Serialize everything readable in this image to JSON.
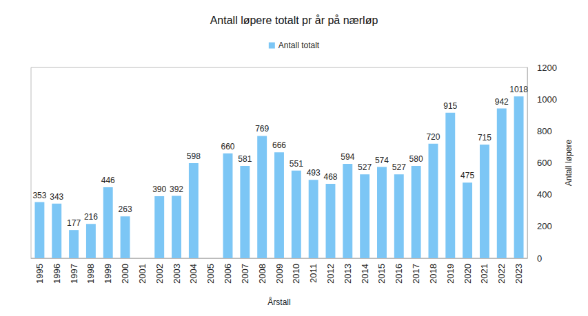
{
  "chart_data": {
    "type": "bar",
    "title": "Antall løpere totalt pr år på nærløp",
    "x_label": "Årstall",
    "y_label": "Antall løpere",
    "categories": [
      "1995",
      "1996",
      "1997",
      "1998",
      "1999",
      "2000",
      "2001",
      "2002",
      "2003",
      "2004",
      "2005",
      "2006",
      "2007",
      "2008",
      "2009",
      "2010",
      "2011",
      "2012",
      "2013",
      "2014",
      "2015",
      "2016",
      "2017",
      "2018",
      "2019",
      "2020",
      "2021",
      "2022",
      "2023"
    ],
    "series": [
      {
        "name": "Antall totalt",
        "color": "#7cc6f5",
        "values": [
          353,
          343,
          177,
          216,
          446,
          263,
          null,
          390,
          392,
          598,
          null,
          660,
          581,
          769,
          666,
          551,
          493,
          468,
          594,
          527,
          574,
          527,
          580,
          720,
          915,
          475,
          715,
          942,
          1018
        ]
      }
    ],
    "ylim": [
      0,
      1200
    ],
    "yticks": [
      0,
      200,
      400,
      600,
      800,
      1000,
      1200
    ],
    "grid": false,
    "legend": "top",
    "data_labels": true
  }
}
